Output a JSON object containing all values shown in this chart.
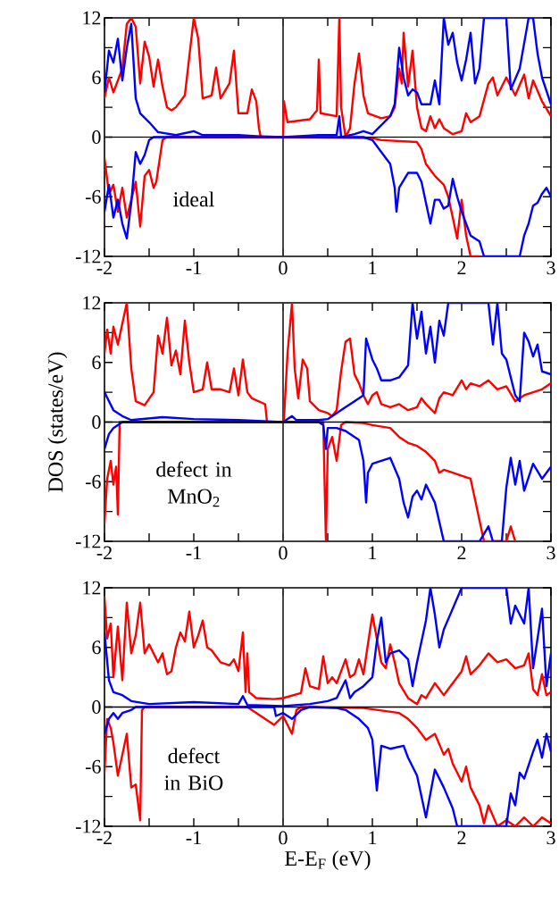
{
  "chart_data": [
    {
      "type": "line",
      "xlim": [
        -2,
        3
      ],
      "ylim": [
        -12,
        12
      ],
      "xticks": [
        -2,
        -1,
        0,
        1,
        2,
        3
      ],
      "yticks": [
        -12,
        -6,
        0,
        6,
        12
      ],
      "annotations": [
        "ideal"
      ],
      "ref_lines": [
        {
          "axis": "y",
          "value": 0,
          "color": "#000000"
        },
        {
          "axis": "x",
          "value": 0,
          "color": "#333333"
        }
      ],
      "series": [
        {
          "color": "#ff0000",
          "x": [
            -2,
            -1.95,
            -1.9,
            -1.8,
            -1.75,
            -1.7,
            -1.65,
            -1.6,
            -1.55,
            -1.5,
            -1.45,
            -1.4,
            -1.35,
            -1.3,
            -1.25,
            -1.2,
            -1.1,
            -1.05,
            -1.0,
            -0.95,
            -0.9,
            -0.8,
            -0.75,
            -0.7,
            -0.6,
            -0.55,
            -0.5,
            -0.4,
            -0.35,
            -0.3,
            -0.27,
            -0.25,
            0,
            0.01,
            0.05,
            0.3,
            0.38,
            0.4,
            0.42,
            0.6,
            0.63,
            0.65,
            0.7,
            0.75,
            0.8,
            0.85,
            0.9,
            0.95,
            1.1,
            1.2,
            1.25,
            1.3,
            1.33,
            1.35,
            1.4,
            1.45,
            1.5,
            1.55,
            1.6,
            1.65,
            1.7,
            1.75,
            1.8,
            1.9,
            2.0,
            2.05,
            2.1,
            2.2,
            2.3,
            2.35,
            2.4,
            2.5,
            2.6,
            2.7,
            2.75,
            2.8,
            2.9,
            3.0
          ],
          "values": [
            3.9,
            6,
            4.5,
            6.9,
            11.4,
            12,
            11.1,
            5.4,
            9.6,
            8.1,
            5.1,
            7.8,
            5.1,
            3,
            2.7,
            3,
            4.2,
            8.1,
            12,
            9.9,
            3.9,
            4.2,
            7,
            3.9,
            5.4,
            8.7,
            2.4,
            2.4,
            4.8,
            3.6,
            0.9,
            0,
            0,
            3.6,
            1.5,
            1.8,
            2.7,
            7.8,
            2.4,
            2.1,
            12,
            3,
            0,
            0.9,
            5.4,
            8.4,
            4.2,
            2.4,
            1.9,
            2.1,
            3,
            6.9,
            5.4,
            10.5,
            5.1,
            8.7,
            3,
            0.9,
            0.6,
            2.1,
            0.9,
            1.8,
            0.9,
            0.3,
            0.6,
            2.4,
            1.5,
            2.1,
            5.4,
            6,
            4.2,
            6,
            4.2,
            6.3,
            3.9,
            5.7,
            3.6,
            2.1
          ]
        },
        {
          "color": "#0000ff",
          "x": [
            -2,
            -1.95,
            -1.9,
            -1.85,
            -1.8,
            -1.75,
            -1.7,
            -1.65,
            -1.6,
            -1.5,
            -1.4,
            -1.2,
            -1.0,
            -0.9,
            -0.5,
            -0.3,
            0,
            0.4,
            0.6,
            0.63,
            0.65,
            0.8,
            0.9,
            1.0,
            1.1,
            1.2,
            1.25,
            1.3,
            1.35,
            1.4,
            1.45,
            1.5,
            1.55,
            1.65,
            1.7,
            1.75,
            1.8,
            1.85,
            1.9,
            1.95,
            2.0,
            2.05,
            2.1,
            2.15,
            2.2,
            2.25,
            2.5,
            2.55,
            2.65,
            2.75,
            2.8,
            2.85,
            2.9,
            3.0
          ],
          "values": [
            4.5,
            8.7,
            7.5,
            9.9,
            5.7,
            9,
            11.4,
            3.9,
            2.4,
            1.5,
            0.5,
            0.2,
            0.6,
            0.2,
            0.2,
            0.1,
            0,
            0.2,
            0.2,
            2.1,
            0,
            0.3,
            0.6,
            0.3,
            1.2,
            2.1,
            3.3,
            9,
            6,
            4.2,
            4.8,
            4.5,
            3.3,
            3.3,
            5.7,
            3.3,
            12,
            9.3,
            10.5,
            7.5,
            5.7,
            7.8,
            10.5,
            5.4,
            6.9,
            12,
            12,
            4.8,
            6.9,
            12,
            12,
            8.4,
            6,
            3.3
          ]
        },
        {
          "color": "#ff0000",
          "x": [
            -2,
            -1.95,
            -1.9,
            -1.85,
            -1.8,
            -1.75,
            -1.7,
            -1.65,
            -1.6,
            -1.55,
            -1.5,
            -1.45,
            -1.42,
            -1.4,
            -1.35,
            -1.3,
            0,
            1.0,
            1.1,
            1.5,
            1.55,
            1.6,
            1.65,
            1.7,
            1.8,
            1.85,
            1.9,
            1.95,
            2.0,
            2.05,
            2.1,
            2.2
          ],
          "values": [
            -2.1,
            -5.7,
            -4.8,
            -7.5,
            -5.1,
            -8.1,
            -6.3,
            -4.5,
            -9,
            -3.9,
            -3.3,
            -5.1,
            -4.5,
            -3.3,
            -0.3,
            0,
            0,
            -0.1,
            -0.3,
            -0.5,
            -1.2,
            -2.7,
            -3.3,
            -3.9,
            -4.8,
            -6,
            -8.1,
            -10.2,
            -6.3,
            -9.9,
            -12,
            -12
          ]
        },
        {
          "color": "#0000ff",
          "x": [
            -2,
            -1.95,
            -1.9,
            -1.85,
            -1.8,
            -1.75,
            -1.7,
            -1.65,
            -1.6,
            -1.55,
            -1.5,
            -1.45,
            0,
            0.9,
            1.0,
            1.1,
            1.2,
            1.25,
            1.27,
            1.3,
            1.4,
            1.5,
            1.55,
            1.6,
            1.65,
            1.7,
            1.75,
            1.8,
            1.85,
            1.9,
            1.95,
            2.0,
            2.1,
            2.2,
            2.25,
            2.65,
            2.7,
            2.75,
            2.8,
            2.85,
            2.9,
            2.95,
            3.0
          ],
          "values": [
            -7.5,
            -4.8,
            -8.1,
            -6.3,
            -8.7,
            -10.2,
            -6.6,
            -1.5,
            -2.7,
            -1.8,
            -0.3,
            0,
            0,
            0,
            -0.3,
            -1.5,
            -2.7,
            -5.1,
            -7.5,
            -5.1,
            -3.6,
            -3.6,
            -4.5,
            -6.6,
            -8.7,
            -6.3,
            -6.3,
            -7.2,
            -6.9,
            -4.2,
            -6,
            -7.5,
            -9.9,
            -10.5,
            -12,
            -12,
            -9.9,
            -8.7,
            -6.9,
            -6.6,
            -5.7,
            -5.1,
            -6
          ]
        }
      ]
    },
    {
      "type": "line",
      "xlim": [
        -2,
        3
      ],
      "ylim": [
        -12,
        12
      ],
      "xticks": [
        -2,
        -1,
        0,
        1,
        2,
        3
      ],
      "yticks": [
        -12,
        -6,
        0,
        6,
        12
      ],
      "ylabel": "DOS (states/eV)",
      "annotations": [
        "defect in MnO$_{2}$"
      ],
      "ref_lines": [
        {
          "axis": "y",
          "value": 0,
          "color": "#000000"
        },
        {
          "axis": "x",
          "value": 0,
          "color": "#333333"
        }
      ],
      "series": [
        {
          "color": "#ff0000",
          "x": [
            -2,
            -1.97,
            -1.93,
            -1.9,
            -1.85,
            -1.8,
            -1.75,
            -1.7,
            -1.65,
            -1.55,
            -1.45,
            -1.4,
            -1.35,
            -1.3,
            -1.25,
            -1.2,
            -1.15,
            -1.1,
            -1.05,
            -1.0,
            -0.9,
            -0.85,
            -0.8,
            -0.7,
            -0.6,
            -0.55,
            -0.5,
            -0.45,
            -0.4,
            -0.35,
            -0.2,
            -0.18,
            0,
            0.01,
            0.05,
            0.1,
            0.13,
            0.17,
            0.22,
            0.27,
            0.3,
            0.4,
            0.5,
            0.55,
            0.6,
            0.65,
            0.7,
            0.75,
            0.8,
            0.85,
            0.9,
            0.95,
            1.0,
            1.05,
            1.1,
            1.2,
            1.3,
            1.4,
            1.5,
            1.55,
            1.6,
            1.7,
            1.75,
            1.8,
            1.9,
            2.0,
            2.05,
            2.1,
            2.2,
            2.3,
            2.4,
            2.5,
            2.6,
            2.7,
            2.8,
            2.9,
            3.0
          ],
          "values": [
            6.9,
            9.3,
            6.9,
            9.6,
            7.8,
            9.9,
            12,
            5.4,
            2.1,
            1.7,
            3,
            8.7,
            6.9,
            10.5,
            5.7,
            7.2,
            4.8,
            10.2,
            6,
            3,
            3.3,
            6,
            3.3,
            3.3,
            3,
            5.4,
            2.7,
            6.3,
            3,
            2.4,
            1.8,
            0,
            0,
            0.3,
            6.9,
            12,
            5.4,
            2.4,
            6.3,
            5.4,
            2.1,
            1.2,
            0.9,
            0.6,
            1.2,
            5.1,
            8.1,
            8.4,
            4.8,
            3.9,
            2.7,
            1.8,
            2.7,
            3,
            1.8,
            1.5,
            1.8,
            1.2,
            1.5,
            2.4,
            1.8,
            0.9,
            2.4,
            3,
            2.7,
            4.2,
            3.3,
            3.9,
            3.6,
            4.2,
            3.3,
            3.6,
            2.1,
            2.7,
            3,
            3.3,
            3.9
          ]
        },
        {
          "color": "#0000ff",
          "x": [
            -2,
            -1.95,
            -1.9,
            -1.8,
            -1.7,
            -1.35,
            -1.0,
            -0.5,
            0,
            0.1,
            0.15,
            0.4,
            0.5,
            0.6,
            0.7,
            0.8,
            0.9,
            0.93,
            1.0,
            1.05,
            1.1,
            1.2,
            1.3,
            1.4,
            1.45,
            1.5,
            1.55,
            1.6,
            1.65,
            1.7,
            1.75,
            1.8,
            1.85,
            2.3,
            2.35,
            2.4,
            2.45,
            2.5,
            2.6,
            2.65,
            2.7,
            2.75,
            2.8,
            2.85,
            2.9,
            3.0
          ],
          "values": [
            3,
            2.1,
            1.2,
            0.6,
            0.2,
            0.5,
            0.3,
            0.2,
            0,
            0.6,
            0.2,
            0.2,
            0.3,
            0.9,
            1.5,
            2.1,
            2.7,
            8.4,
            6.3,
            5.4,
            4.2,
            4.2,
            4.5,
            5.7,
            12,
            8.4,
            11.1,
            6.9,
            9.6,
            6,
            10.2,
            8.7,
            12,
            12,
            7.8,
            12,
            6.9,
            6.3,
            2.7,
            2.1,
            9,
            8.1,
            6.6,
            7.8,
            5.1,
            4.8
          ]
        },
        {
          "color": "#ff0000",
          "x": [
            -2,
            -1.97,
            -1.93,
            -1.9,
            -1.87,
            -1.85,
            -1.83,
            0,
            0.45,
            0.48,
            0.5,
            0.55,
            0.6,
            0.65,
            0.7,
            0.9,
            1.0,
            1.2,
            1.3,
            1.4,
            1.5,
            1.6,
            1.7,
            1.75,
            1.8,
            1.9,
            2.0,
            2.1,
            2.15,
            2.2,
            2.25,
            2.5,
            2.55,
            2.6
          ],
          "values": [
            -10.2,
            -5.7,
            -3.9,
            -6.3,
            -4.5,
            -9.3,
            0,
            0,
            0,
            -12,
            -2.7,
            -1.5,
            -3.9,
            -0.3,
            0,
            -0.1,
            -0.3,
            -0.6,
            -1.5,
            -2.1,
            -2.4,
            -3,
            -3.9,
            -5.1,
            -4.8,
            -5.1,
            -5.4,
            -5.7,
            -7.8,
            -9.9,
            -12,
            -12,
            -10.5,
            -12
          ]
        },
        {
          "color": "#0000ff",
          "x": [
            -2,
            -1.95,
            -1.9,
            -1.85,
            -1.8,
            0.4,
            0.45,
            0.48,
            0.5,
            0.6,
            0.7,
            0.85,
            0.9,
            0.93,
            0.95,
            1.0,
            1.1,
            1.2,
            1.3,
            1.35,
            1.4,
            1.45,
            1.5,
            1.55,
            1.6,
            1.7,
            1.8,
            2.2,
            2.3,
            2.35,
            2.45,
            2.5,
            2.55,
            2.6,
            2.65,
            2.7,
            2.8,
            2.9,
            3.0
          ],
          "values": [
            -2.7,
            -1.2,
            -0.6,
            -0.3,
            0,
            0,
            -0.3,
            -2.7,
            -0.6,
            -0.6,
            -0.9,
            -1.8,
            -3.9,
            -8.1,
            -5.1,
            -4.2,
            -3.9,
            -3.6,
            -5.7,
            -8.1,
            -9.6,
            -7.5,
            -6.9,
            -7.8,
            -6.3,
            -8.1,
            -12,
            -12,
            -10.5,
            -12,
            -12,
            -6.6,
            -3.6,
            -6.3,
            -3.9,
            -6.9,
            -4.2,
            -5.7,
            -4.5
          ]
        }
      ]
    },
    {
      "type": "line",
      "xlim": [
        -2,
        3
      ],
      "ylim": [
        -12,
        12
      ],
      "xticks": [
        -2,
        -1,
        0,
        1,
        2,
        3
      ],
      "yticks": [
        -12,
        -6,
        0,
        6,
        12
      ],
      "xlabel": "E-E$_{F}$ (eV)",
      "annotations": [
        "defect in BiO"
      ],
      "ref_lines": [
        {
          "axis": "y",
          "value": 0,
          "color": "#000000"
        },
        {
          "axis": "x",
          "value": 0,
          "color": "#333333"
        }
      ],
      "series": [
        {
          "color": "#ff0000",
          "x": [
            -2,
            -1.97,
            -1.93,
            -1.9,
            -1.85,
            -1.8,
            -1.75,
            -1.7,
            -1.65,
            -1.6,
            -1.55,
            -1.5,
            -1.4,
            -1.35,
            -1.3,
            -1.25,
            -1.2,
            -1.15,
            -1.1,
            -1.05,
            -1.0,
            -0.95,
            -0.9,
            -0.85,
            -0.8,
            -0.7,
            -0.6,
            -0.55,
            -0.5,
            -0.45,
            -0.42,
            -0.4,
            -0.38,
            -0.3,
            -0.1,
            0,
            0.2,
            0.25,
            0.3,
            0.4,
            0.45,
            0.5,
            0.55,
            0.6,
            0.7,
            0.75,
            0.8,
            0.85,
            0.9,
            1.0,
            1.05,
            1.1,
            1.15,
            1.2,
            1.25,
            1.3,
            1.4,
            1.5,
            1.55,
            1.6,
            1.7,
            1.8,
            1.9,
            2.0,
            2.05,
            2.1,
            2.2,
            2.3,
            2.4,
            2.5,
            2.6,
            2.7,
            2.75,
            2.8,
            2.85,
            2.9,
            2.95,
            3.0
          ],
          "values": [
            11.1,
            6.9,
            8.4,
            3,
            8.1,
            2.7,
            10.5,
            5.4,
            7.2,
            10.5,
            5.4,
            6.3,
            4.5,
            5.4,
            3.3,
            3.6,
            6,
            7.5,
            6.6,
            9.6,
            6,
            7.2,
            8.7,
            6,
            5.7,
            4.5,
            4.2,
            4.8,
            3.6,
            7.5,
            1.5,
            5.4,
            1.5,
            0.9,
            0.8,
            0.9,
            1.4,
            3.9,
            2.1,
            1.8,
            5.1,
            2.4,
            3,
            2.4,
            4.8,
            3,
            3.3,
            4.8,
            3.3,
            9.3,
            6.9,
            4.5,
            3.9,
            6.3,
            4.5,
            2.4,
            0.9,
            0.3,
            1.2,
            0.9,
            2.4,
            1.2,
            2.4,
            3.6,
            5.1,
            3.3,
            4.2,
            5.4,
            4.5,
            4.8,
            3.9,
            4.2,
            5.4,
            1.8,
            1.2,
            3.3,
            1.2,
            1.5
          ]
        },
        {
          "color": "#0000ff",
          "x": [
            -2,
            -1.95,
            -1.9,
            -1.8,
            -1.7,
            -1.5,
            -1.0,
            -0.5,
            -0.45,
            -0.4,
            0,
            0.3,
            0.5,
            0.6,
            0.7,
            0.75,
            0.8,
            0.9,
            1.0,
            1.05,
            1.1,
            1.15,
            1.2,
            1.3,
            1.4,
            1.45,
            1.5,
            1.6,
            1.65,
            1.7,
            1.75,
            1.8,
            1.9,
            2.0,
            2.5,
            2.55,
            2.6,
            2.7,
            2.75,
            2.8,
            2.85,
            2.9,
            2.95,
            3.0
          ],
          "values": [
            7.5,
            2.7,
            1.5,
            1.2,
            0.6,
            0.3,
            0.5,
            0.3,
            1.1,
            0.2,
            0.1,
            0.3,
            0.6,
            0.9,
            2.7,
            0.9,
            1.5,
            2.1,
            3,
            6.6,
            9,
            4.5,
            5.4,
            5.7,
            4.8,
            2.1,
            4.5,
            8.7,
            12,
            9.3,
            6,
            7.8,
            9.9,
            12,
            12,
            8.4,
            10.2,
            8.4,
            12,
            3.9,
            6.9,
            9.9,
            2.1,
            5.4
          ]
        },
        {
          "color": "#ff0000",
          "x": [
            -2,
            -1.97,
            -1.93,
            -1.9,
            -1.85,
            -1.8,
            -1.75,
            -1.7,
            -1.65,
            -1.6,
            -1.58,
            -1.55,
            -0.4,
            -0.1,
            0,
            0.1,
            0.15,
            0.2,
            0.9,
            1.3,
            1.4,
            1.5,
            1.6,
            1.7,
            1.8,
            1.85,
            1.9,
            2.0,
            2.05,
            2.1,
            2.2,
            2.25,
            2.3,
            2.4,
            2.5,
            2.6,
            2.7,
            2.8,
            2.9,
            3.0
          ],
          "values": [
            -6.6,
            -1.2,
            -2.1,
            -3.6,
            -6.9,
            -4.8,
            -2.7,
            -8.1,
            -7.8,
            -11.4,
            -0.3,
            0,
            0,
            -1.8,
            -0.9,
            -2.7,
            -0.3,
            0,
            -0.1,
            -0.6,
            -1.2,
            -2.1,
            -3.3,
            -2.7,
            -4.8,
            -4.2,
            -5.7,
            -7.5,
            -6,
            -8.1,
            -9.9,
            -11.7,
            -9.9,
            -12,
            -11.4,
            -12,
            -11.1,
            -12,
            -11.1,
            -11.7
          ]
        },
        {
          "color": "#0000ff",
          "x": [
            -2,
            -1.95,
            -1.9,
            -1.85,
            -1.8,
            -1.7,
            -1.65,
            -0.1,
            -0.08,
            0,
            0.1,
            0.2,
            0.3,
            0.6,
            0.7,
            0.85,
            0.95,
            1.0,
            1.05,
            1.1,
            1.2,
            1.35,
            1.4,
            1.5,
            1.6,
            1.65,
            1.7,
            1.8,
            1.9,
            1.95,
            2.5,
            2.55,
            2.6,
            2.65,
            2.7,
            2.8,
            2.85,
            2.9,
            2.95,
            3.0
          ],
          "values": [
            -2.7,
            -1.2,
            -0.6,
            -1.2,
            -0.6,
            -0.3,
            0,
            0,
            -0.9,
            -0.6,
            -1.2,
            -0.3,
            0,
            -0.1,
            -0.3,
            -1.2,
            -2.1,
            -3.3,
            -8.4,
            -3.9,
            -4.2,
            -3.9,
            -5.1,
            -6.9,
            -11.1,
            -8.7,
            -6.3,
            -8.1,
            -10.2,
            -12,
            -12,
            -8.7,
            -9.9,
            -6.6,
            -7.2,
            -4.5,
            -3.3,
            -5.1,
            -2.7,
            -4.5
          ]
        }
      ]
    }
  ]
}
